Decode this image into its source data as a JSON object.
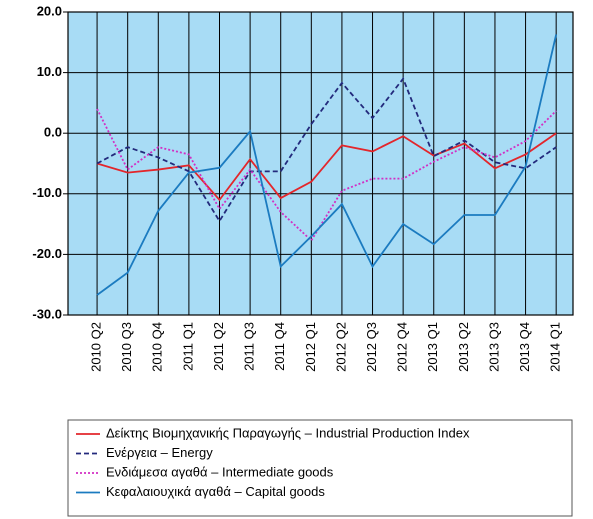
{
  "chart_data": {
    "type": "line",
    "categories": [
      "2010 Q2",
      "2010 Q3",
      "2010 Q4",
      "2011 Q1",
      "2011 Q2",
      "2011 Q3",
      "2011 Q4",
      "2012 Q1",
      "2012 Q2",
      "2012 Q3",
      "2012 Q4",
      "2013 Q1",
      "2013 Q2",
      "2013 Q3",
      "2013 Q4",
      "2014 Q1"
    ],
    "series": [
      {
        "name": "Δείκτης Βιομηχανικής Παραγωγής – Industrial Production Index",
        "color": "#e3262b",
        "dash": "solid",
        "values": [
          -5,
          -6.5,
          -6,
          -5.3,
          -11,
          -4.3,
          -10.7,
          -8,
          -2,
          -3,
          -0.5,
          -3.7,
          -1.7,
          -5.8,
          -3.5,
          0
        ]
      },
      {
        "name": "Ενέργεια – Energy",
        "color": "#232a7c",
        "dash": "dashed",
        "values": [
          -5,
          -2.3,
          -4,
          -6.3,
          -14.5,
          -6.3,
          -6.3,
          1.5,
          8.3,
          2.5,
          9,
          -3.8,
          -1.2,
          -4.8,
          -5.8,
          -2.3
        ]
      },
      {
        "name": "Ενδιάμεσα αγαθά – Intermediate goods",
        "color": "#d22fc4",
        "dash": "dotted",
        "values": [
          4,
          -6,
          -2.3,
          -3.5,
          -12.5,
          -6,
          -13,
          -17.7,
          -9.5,
          -7.5,
          -7.5,
          -4.7,
          -2.3,
          -4,
          -1.3,
          3.7
        ]
      },
      {
        "name": "Κεφαλαιουχικά αγαθά – Capital goods",
        "color": "#1b7bc0",
        "dash": "solid",
        "values": [
          -26.7,
          -23,
          -12.8,
          -6.5,
          -5.7,
          0.3,
          -22,
          -17,
          -11.7,
          -22,
          -15,
          -18.3,
          -13.5,
          -13.5,
          -5.5,
          16.3
        ]
      }
    ],
    "ylim": [
      -30,
      20
    ],
    "yticks": [
      {
        "value": -30,
        "label": "-30.0"
      },
      {
        "value": -20,
        "label": "-20.0"
      },
      {
        "value": -10,
        "label": "-10.0"
      },
      {
        "value": 0,
        "label": "0.0"
      },
      {
        "value": 10,
        "label": "10.0"
      },
      {
        "value": 20,
        "label": "20.0"
      }
    ],
    "grid": true,
    "background": "#a8dcf5"
  }
}
